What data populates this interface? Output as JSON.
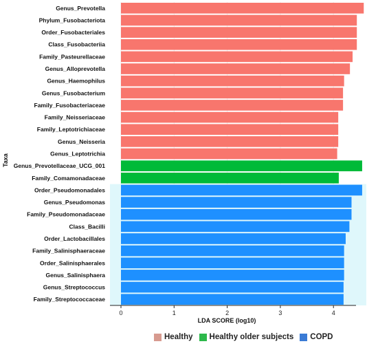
{
  "chart_data": {
    "type": "bar",
    "orientation": "horizontal",
    "xlabel": "LDA SCORE (log10)",
    "ylabel": "Taxa",
    "xlim": [
      0,
      4.6
    ],
    "xticks": [
      "0",
      "1",
      "2",
      "3",
      "4"
    ],
    "grid": true,
    "legend_position": "bottom",
    "series": [
      {
        "name": "Healthy",
        "color": "#f8766d"
      },
      {
        "name": "Healthy older subjects",
        "color": "#00ba38"
      },
      {
        "name": "COPD",
        "color": "#1e90ff"
      }
    ],
    "legend_swatch_colors": [
      "#d79a8f",
      "#2db84b",
      "#3a7bd5"
    ],
    "bars": [
      {
        "label": "Genus_Prevotella",
        "value": 4.57,
        "group": "Healthy"
      },
      {
        "label": "Phylum_Fusobacteriota",
        "value": 4.44,
        "group": "Healthy"
      },
      {
        "label": "Order_Fusobacteriales",
        "value": 4.44,
        "group": "Healthy"
      },
      {
        "label": "Class_Fusobacteriia",
        "value": 4.44,
        "group": "Healthy"
      },
      {
        "label": "Family_Pasteurellaceae",
        "value": 4.36,
        "group": "Healthy"
      },
      {
        "label": "Genus_Alloprevotella",
        "value": 4.31,
        "group": "Healthy"
      },
      {
        "label": "Genus_Haemophilus",
        "value": 4.2,
        "group": "Healthy"
      },
      {
        "label": "Genus_Fusobacterium",
        "value": 4.18,
        "group": "Healthy"
      },
      {
        "label": "Family_Fusobacteriaceae",
        "value": 4.18,
        "group": "Healthy"
      },
      {
        "label": "Family_Neisseriaceae",
        "value": 4.09,
        "group": "Healthy"
      },
      {
        "label": "Family_Leptotrichiaceae",
        "value": 4.09,
        "group": "Healthy"
      },
      {
        "label": "Genus_Neisseria",
        "value": 4.09,
        "group": "Healthy"
      },
      {
        "label": "Genus_Leptotrichia",
        "value": 4.07,
        "group": "Healthy"
      },
      {
        "label": "Genus_Prevotellaceae_UCG_001",
        "value": 4.54,
        "group": "Healthy older subjects"
      },
      {
        "label": "Family_Comamonadaceae",
        "value": 4.1,
        "group": "Healthy older subjects"
      },
      {
        "label": "Order_Pseudomonadales",
        "value": 4.54,
        "group": "COPD"
      },
      {
        "label": "Genus_Pseudomonas",
        "value": 4.34,
        "group": "COPD"
      },
      {
        "label": "Family_Pseudomonadaceae",
        "value": 4.34,
        "group": "COPD"
      },
      {
        "label": "Class_Bacilli",
        "value": 4.3,
        "group": "COPD"
      },
      {
        "label": "Order_Lactobacillales",
        "value": 4.23,
        "group": "COPD"
      },
      {
        "label": "Family_Salinisphaeraceae",
        "value": 4.2,
        "group": "COPD"
      },
      {
        "label": "Order_Salinisphaerales",
        "value": 4.2,
        "group": "COPD"
      },
      {
        "label": "Genus_Salinisphaera",
        "value": 4.2,
        "group": "COPD"
      },
      {
        "label": "Genus_Streptococcus",
        "value": 4.19,
        "group": "COPD"
      },
      {
        "label": "Family_Streptococcaceae",
        "value": 4.19,
        "group": "COPD"
      }
    ],
    "copd_band_color": "#dff7fb"
  }
}
